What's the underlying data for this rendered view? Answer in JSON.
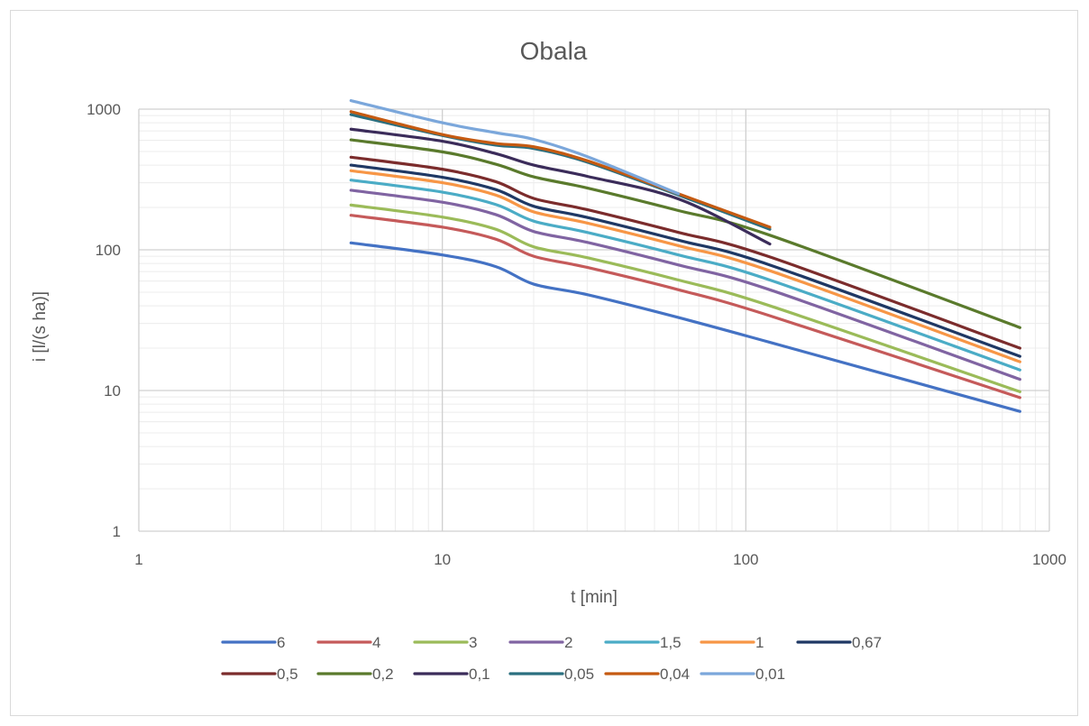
{
  "chart_data": {
    "type": "line",
    "title": "Obala",
    "xlabel": "t [min]",
    "ylabel": "i [l/(s ha)]",
    "xscale": "log",
    "yscale": "log",
    "xlim": [
      1,
      1000
    ],
    "ylim": [
      1,
      1000
    ],
    "xticks": [
      "1",
      "10",
      "100",
      "1000"
    ],
    "yticks": [
      "1",
      "10",
      "100",
      "1000"
    ],
    "grid": true,
    "legend_position": "bottom",
    "series": [
      {
        "name": "6",
        "color": "#4472c4",
        "points": [
          [
            5,
            112
          ],
          [
            10,
            92
          ],
          [
            15,
            76
          ],
          [
            20,
            57
          ],
          [
            30,
            48
          ],
          [
            60,
            33
          ],
          [
            120,
            22
          ],
          [
            800,
            7.1
          ]
        ]
      },
      {
        "name": "4",
        "color": "#c55a5a",
        "points": [
          [
            5,
            176
          ],
          [
            10,
            145
          ],
          [
            15,
            119
          ],
          [
            20,
            90
          ],
          [
            30,
            75
          ],
          [
            60,
            52
          ],
          [
            120,
            34
          ],
          [
            800,
            8.9
          ]
        ]
      },
      {
        "name": "3",
        "color": "#9bbb59",
        "points": [
          [
            5,
            208
          ],
          [
            10,
            171
          ],
          [
            15,
            140
          ],
          [
            20,
            105
          ],
          [
            30,
            88
          ],
          [
            60,
            61
          ],
          [
            120,
            40
          ],
          [
            800,
            9.8
          ]
        ]
      },
      {
        "name": "2",
        "color": "#8064a2",
        "points": [
          [
            5,
            265
          ],
          [
            10,
            218
          ],
          [
            15,
            178
          ],
          [
            20,
            135
          ],
          [
            30,
            113
          ],
          [
            60,
            78
          ],
          [
            120,
            52
          ],
          [
            800,
            12
          ]
        ]
      },
      {
        "name": "1,5",
        "color": "#4bacc6",
        "points": [
          [
            5,
            313
          ],
          [
            10,
            257
          ],
          [
            15,
            210
          ],
          [
            20,
            160
          ],
          [
            30,
            133
          ],
          [
            60,
            92
          ],
          [
            120,
            61
          ],
          [
            800,
            14
          ]
        ]
      },
      {
        "name": "1",
        "color": "#f79646",
        "points": [
          [
            5,
            365
          ],
          [
            10,
            300
          ],
          [
            15,
            245
          ],
          [
            20,
            186
          ],
          [
            30,
            155
          ],
          [
            60,
            107
          ],
          [
            120,
            71
          ],
          [
            800,
            16
          ]
        ]
      },
      {
        "name": "0,67",
        "color": "#1f3864",
        "points": [
          [
            5,
            400
          ],
          [
            10,
            328
          ],
          [
            15,
            268
          ],
          [
            20,
            204
          ],
          [
            30,
            170
          ],
          [
            60,
            117
          ],
          [
            120,
            78
          ],
          [
            800,
            17.5
          ]
        ]
      },
      {
        "name": "0,5",
        "color": "#7b2c2c",
        "points": [
          [
            5,
            455
          ],
          [
            10,
            374
          ],
          [
            15,
            305
          ],
          [
            20,
            232
          ],
          [
            30,
            193
          ],
          [
            60,
            133
          ],
          [
            120,
            89
          ],
          [
            800,
            20
          ]
        ]
      },
      {
        "name": "0,2",
        "color": "#5a7a2c",
        "points": [
          [
            5,
            605
          ],
          [
            10,
            497
          ],
          [
            15,
            406
          ],
          [
            20,
            330
          ],
          [
            30,
            275
          ],
          [
            60,
            190
          ],
          [
            120,
            127
          ],
          [
            800,
            28
          ]
        ]
      },
      {
        "name": "0,1",
        "color": "#3b2c5a",
        "points": [
          [
            5,
            720
          ],
          [
            10,
            592
          ],
          [
            15,
            483
          ],
          [
            20,
            400
          ],
          [
            30,
            333
          ],
          [
            60,
            230
          ],
          [
            120,
            110
          ]
        ]
      },
      {
        "name": "0,05",
        "color": "#2a6f7f",
        "points": [
          [
            5,
            915
          ],
          [
            10,
            650
          ],
          [
            15,
            555
          ],
          [
            20,
            525
          ],
          [
            30,
            420
          ],
          [
            60,
            245
          ],
          [
            120,
            140
          ]
        ]
      },
      {
        "name": "0,04",
        "color": "#c55a11",
        "points": [
          [
            5,
            960
          ],
          [
            10,
            660
          ],
          [
            15,
            570
          ],
          [
            20,
            540
          ],
          [
            30,
            430
          ],
          [
            60,
            250
          ],
          [
            120,
            145
          ]
        ]
      },
      {
        "name": "0,01",
        "color": "#7ba7db",
        "points": [
          [
            5,
            1150
          ],
          [
            10,
            800
          ],
          [
            15,
            680
          ],
          [
            20,
            610
          ],
          [
            30,
            460
          ],
          [
            60,
            250
          ]
        ]
      }
    ]
  }
}
